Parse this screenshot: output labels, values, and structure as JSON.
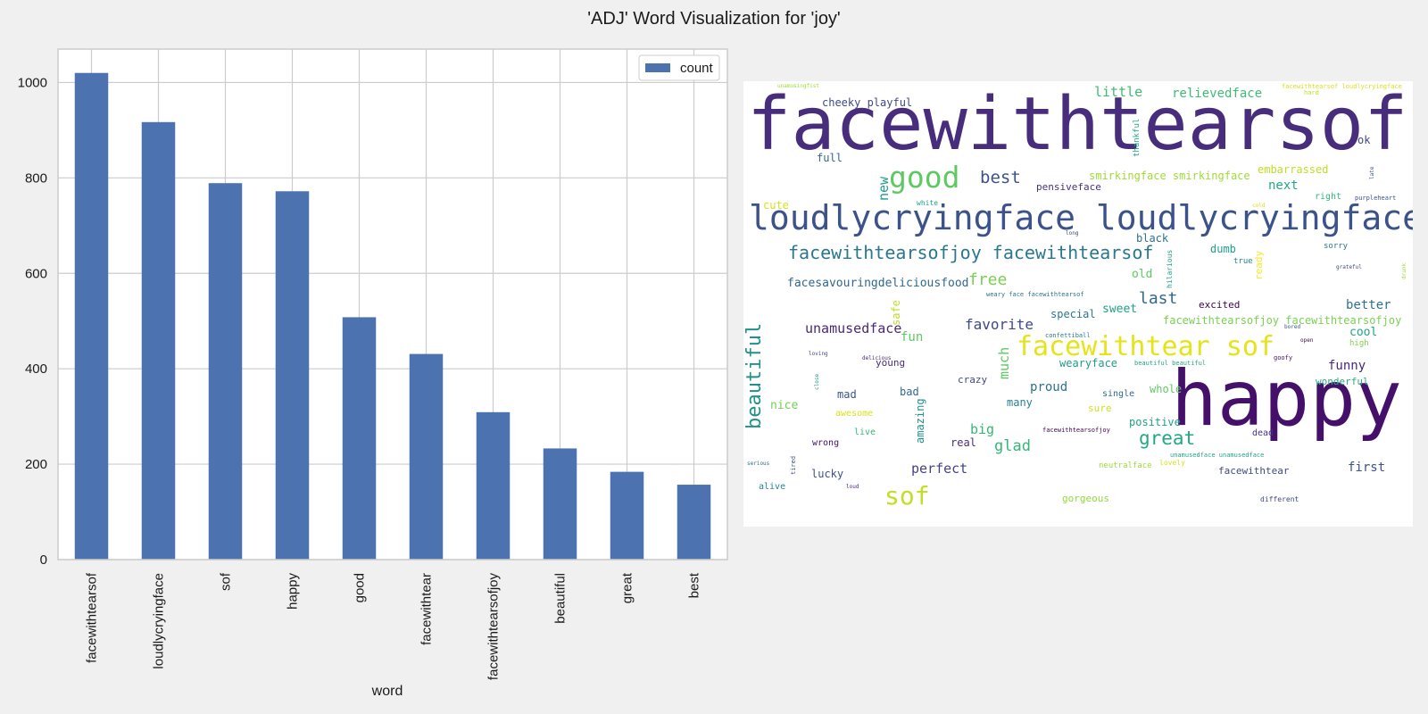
{
  "figure": {
    "title": "'ADJ' Word Visualization for 'joy'"
  },
  "chart_data": [
    {
      "type": "bar",
      "title": "",
      "xlabel": "word",
      "ylabel": "",
      "ylim": [
        0,
        1070
      ],
      "yticks": [
        0,
        200,
        400,
        600,
        800,
        1000
      ],
      "grid": true,
      "legend": "top-right",
      "bar_color": "#4c72b0",
      "categories": [
        "facewithtearsof",
        "loudlycryingface",
        "sof",
        "happy",
        "good",
        "facewithtear",
        "facewithtearsofjoy",
        "beautiful",
        "great",
        "best"
      ],
      "series": [
        {
          "name": "count",
          "values": [
            1020,
            917,
            789,
            772,
            508,
            431,
            309,
            233,
            184,
            157
          ]
        }
      ]
    },
    {
      "type": "wordcloud",
      "background": "#ffffff",
      "words": [
        {
          "text": "facewithtearsof",
          "color": "#472d7b",
          "size": 82
        },
        {
          "text": "happy",
          "color": "#44106a",
          "size": 86
        },
        {
          "text": "loudlycryingface loudlycryingface",
          "color": "#3b528b",
          "size": 38
        },
        {
          "text": "facewithtear sof",
          "color": "#e5e419",
          "size": 30
        },
        {
          "text": "good",
          "color": "#5ec962",
          "size": 33
        },
        {
          "text": "sof",
          "color": "#c2df23",
          "size": 28
        },
        {
          "text": "beautiful",
          "color": "#21918c",
          "size": 22,
          "vertical": true
        },
        {
          "text": "facewithtearsofjoy facewithtearsof",
          "color": "#2a788e",
          "size": 20
        },
        {
          "text": "great",
          "color": "#22a884",
          "size": 21
        },
        {
          "text": "best",
          "color": "#3b528b",
          "size": 19
        },
        {
          "text": "free",
          "color": "#7ad151",
          "size": 18
        },
        {
          "text": "last",
          "color": "#31688e",
          "size": 18
        },
        {
          "text": "favorite",
          "color": "#3e4989",
          "size": 16
        },
        {
          "text": "glad",
          "color": "#35b779",
          "size": 17
        },
        {
          "text": "perfect",
          "color": "#414487",
          "size": 15
        },
        {
          "text": "unamusedface",
          "color": "#482878",
          "size": 15
        },
        {
          "text": "much",
          "color": "#5ec962",
          "size": 15,
          "vertical": true
        },
        {
          "text": "new",
          "color": "#1f9e89",
          "size": 15,
          "vertical": true
        },
        {
          "text": "big",
          "color": "#35b779",
          "size": 15
        },
        {
          "text": "proud",
          "color": "#2c728e",
          "size": 14
        },
        {
          "text": "little",
          "color": "#3fbc73",
          "size": 15
        },
        {
          "text": "relievedface",
          "color": "#3fbc73",
          "size": 14
        },
        {
          "text": "funny",
          "color": "#482878",
          "size": 14
        },
        {
          "text": "better",
          "color": "#2c728e",
          "size": 14
        },
        {
          "text": "next",
          "color": "#22a884",
          "size": 14
        },
        {
          "text": "fun",
          "color": "#5ec962",
          "size": 14
        },
        {
          "text": "first",
          "color": "#3b528b",
          "size": 14
        },
        {
          "text": "cool",
          "color": "#20a486",
          "size": 13
        },
        {
          "text": "sweet",
          "color": "#1fa088",
          "size": 13
        },
        {
          "text": "old",
          "color": "#5ec962",
          "size": 13
        },
        {
          "text": "dumb",
          "color": "#1f9e89",
          "size": 12
        },
        {
          "text": "embarrassed",
          "color": "#bddf26",
          "size": 12
        },
        {
          "text": "smirkingface smirkingface",
          "color": "#a0da39",
          "size": 12
        },
        {
          "text": "facesavouringdeliciousfood",
          "color": "#31688e",
          "size": 13
        },
        {
          "text": "facewithtearsofjoy facewithtearsofjoy",
          "color": "#7ad151",
          "size": 12
        },
        {
          "text": "cheeky playful",
          "color": "#3e4989",
          "size": 12
        },
        {
          "text": "full",
          "color": "#31688e",
          "size": 12
        },
        {
          "text": "cute",
          "color": "#d8e219",
          "size": 12
        },
        {
          "text": "special",
          "color": "#2a788e",
          "size": 12
        },
        {
          "text": "pensiveface",
          "color": "#46327e",
          "size": 11
        },
        {
          "text": "black",
          "color": "#2c728e",
          "size": 12
        },
        {
          "text": "ok",
          "color": "#3e4989",
          "size": 12
        },
        {
          "text": "excited",
          "color": "#440154",
          "size": 11
        },
        {
          "text": "wearyface",
          "color": "#1f9e89",
          "size": 12
        },
        {
          "text": "whole",
          "color": "#5ec962",
          "size": 12
        },
        {
          "text": "positive",
          "color": "#1fa188",
          "size": 12
        },
        {
          "text": "nice",
          "color": "#73d056",
          "size": 13
        },
        {
          "text": "mad",
          "color": "#3b528b",
          "size": 12
        },
        {
          "text": "bad",
          "color": "#31688e",
          "size": 12
        },
        {
          "text": "many",
          "color": "#26828e",
          "size": 12
        },
        {
          "text": "crazy",
          "color": "#3e4989",
          "size": 11
        },
        {
          "text": "sure",
          "color": "#d0e11c",
          "size": 11
        },
        {
          "text": "real",
          "color": "#472d7b",
          "size": 12
        },
        {
          "text": "young",
          "color": "#472d7b",
          "size": 11
        },
        {
          "text": "lucky",
          "color": "#3b528b",
          "size": 12
        },
        {
          "text": "wonderful",
          "color": "#29af7f",
          "size": 11
        },
        {
          "text": "gorgeous",
          "color": "#95d840",
          "size": 11
        },
        {
          "text": "amazing",
          "color": "#21918c",
          "size": 12,
          "vertical": true
        },
        {
          "text": "safe",
          "color": "#bddf26",
          "size": 12,
          "vertical": true
        },
        {
          "text": "ready",
          "color": "#fde725",
          "size": 11,
          "vertical": true
        },
        {
          "text": "hilarious",
          "color": "#1fa188",
          "size": 8,
          "vertical": true
        },
        {
          "text": "thankful",
          "color": "#22a884",
          "size": 9,
          "vertical": true
        },
        {
          "text": "wrong",
          "color": "#44106a",
          "size": 10
        },
        {
          "text": "awesome",
          "color": "#d8e219",
          "size": 10
        },
        {
          "text": "live",
          "color": "#35b779",
          "size": 10
        },
        {
          "text": "alive",
          "color": "#26828e",
          "size": 10
        },
        {
          "text": "single",
          "color": "#31688e",
          "size": 10
        },
        {
          "text": "right",
          "color": "#35b779",
          "size": 10
        },
        {
          "text": "sorry",
          "color": "#2a788e",
          "size": 9
        },
        {
          "text": "true",
          "color": "#26828e",
          "size": 9
        },
        {
          "text": "white",
          "color": "#1fa188",
          "size": 8
        },
        {
          "text": "dead",
          "color": "#46327e",
          "size": 10
        },
        {
          "text": "high",
          "color": "#7ad151",
          "size": 9
        },
        {
          "text": "neutralface",
          "color": "#a0da39",
          "size": 9
        },
        {
          "text": "lovely",
          "color": "#d8e219",
          "size": 8
        },
        {
          "text": "facewithtear",
          "color": "#3e4989",
          "size": 11
        },
        {
          "text": "unamusedface unamusedface",
          "color": "#20a486",
          "size": 7
        },
        {
          "text": "weary face facewithtearsof",
          "color": "#2c728e",
          "size": 7
        },
        {
          "text": "confettiball",
          "color": "#2a788e",
          "size": 7
        },
        {
          "text": "beautiful beautiful",
          "color": "#22a884",
          "size": 7
        },
        {
          "text": "facewithtearsofjoy",
          "color": "#440154",
          "size": 7
        },
        {
          "text": "goofy",
          "color": "#471164",
          "size": 7
        },
        {
          "text": "different",
          "color": "#3e4989",
          "size": 8
        },
        {
          "text": "grateful",
          "color": "#3e4989",
          "size": 6
        },
        {
          "text": "purpleheart",
          "color": "#3b528b",
          "size": 7
        },
        {
          "text": "facewithtearsof loudlycryingface",
          "color": "#d8e219",
          "size": 7
        },
        {
          "text": "hard",
          "color": "#bddf26",
          "size": 7
        },
        {
          "text": "unamusingfist",
          "color": "#a0da39",
          "size": 6
        },
        {
          "text": "bored",
          "color": "#3b528b",
          "size": 6
        },
        {
          "text": "open",
          "color": "#440154",
          "size": 6
        },
        {
          "text": "long",
          "color": "#3e4989",
          "size": 6
        },
        {
          "text": "cold",
          "color": "#d8e219",
          "size": 6
        },
        {
          "text": "loving",
          "color": "#3e4989",
          "size": 6
        },
        {
          "text": "delicious",
          "color": "#482878",
          "size": 6
        },
        {
          "text": "serious",
          "color": "#31688e",
          "size": 6
        },
        {
          "text": "loud",
          "color": "#482878",
          "size": 6
        },
        {
          "text": "tired",
          "color": "#3b528b",
          "size": 7,
          "vertical": true
        },
        {
          "text": "close",
          "color": "#21918c",
          "size": 6,
          "vertical": true
        },
        {
          "text": "late",
          "color": "#3b528b",
          "size": 6,
          "vertical": true
        },
        {
          "text": "drunk",
          "color": "#a0da39",
          "size": 6,
          "vertical": true
        }
      ]
    }
  ]
}
